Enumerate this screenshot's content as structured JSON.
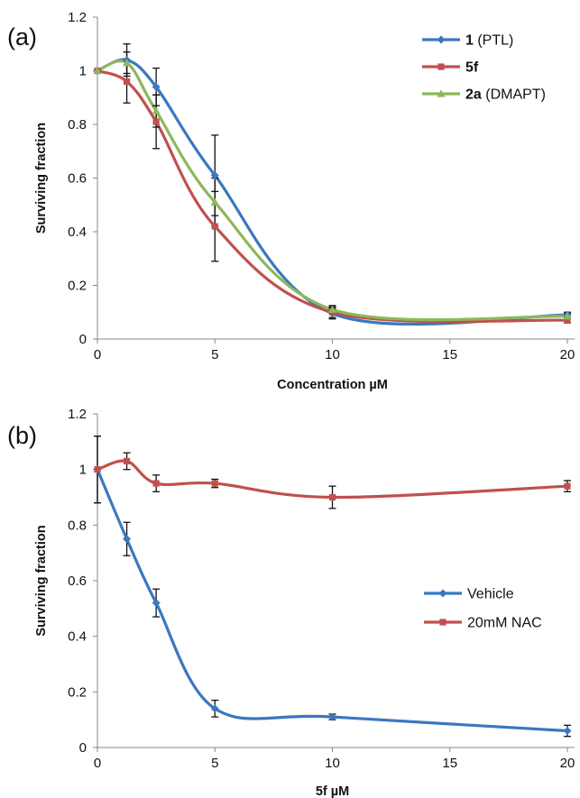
{
  "chart_data": [
    {
      "type": "line",
      "panel_label": "(a)",
      "xlabel": "Concentration µM",
      "ylabel": "Surviving fraction",
      "xlim": [
        0,
        20
      ],
      "ylim": [
        0,
        1.2
      ],
      "xticks": [
        "0",
        "5",
        "10",
        "15",
        "20"
      ],
      "yticks": [
        "0",
        "0.2",
        "0.4",
        "0.6",
        "0.8",
        "1",
        "1.2"
      ],
      "grid": false,
      "legend_position": "top-right",
      "series": [
        {
          "name": "1 (PTL)",
          "name_bold": "1",
          "name_rest": " (PTL)",
          "color": "#3a78c0",
          "marker": "diamond",
          "x": [
            0,
            1.25,
            2.5,
            5,
            10,
            20
          ],
          "values": [
            1.0,
            1.04,
            0.94,
            0.61,
            0.095,
            0.09
          ],
          "errors": [
            0,
            0.06,
            0.07,
            0.15,
            0.02,
            0.01
          ]
        },
        {
          "name": "5f",
          "name_bold": "5f",
          "name_rest": "",
          "color": "#c0504d",
          "marker": "square",
          "x": [
            0,
            1.25,
            2.5,
            5,
            10,
            20
          ],
          "values": [
            1.0,
            0.96,
            0.81,
            0.42,
            0.1,
            0.07
          ],
          "errors": [
            0,
            0.08,
            0.1,
            0.13,
            0.02,
            0.01
          ]
        },
        {
          "name": "2a (DMAPT)",
          "name_bold": "2a",
          "name_rest": " (DMAPT)",
          "color": "#8db85a",
          "marker": "triangle",
          "x": [
            0,
            1.25,
            2.5,
            5,
            10,
            20
          ],
          "values": [
            1.0,
            1.03,
            0.85,
            0.51,
            0.11,
            0.085
          ],
          "errors": [
            0,
            0.04,
            0.06,
            0.09,
            0.015,
            0.01
          ]
        }
      ]
    },
    {
      "type": "line",
      "panel_label": "(b)",
      "xlabel": "5f µM",
      "ylabel": "Surviving fraction",
      "xlim": [
        0,
        20
      ],
      "ylim": [
        0,
        1.2
      ],
      "xticks": [
        "0",
        "5",
        "10",
        "15",
        "20"
      ],
      "yticks": [
        "0",
        "0.2",
        "0.4",
        "0.6",
        "0.8",
        "1",
        "1.2"
      ],
      "grid": false,
      "legend_position": "right-middle",
      "series": [
        {
          "name": "Vehicle",
          "name_bold": "",
          "name_rest": "Vehicle",
          "color": "#3a78c0",
          "marker": "diamond",
          "x": [
            0,
            1.25,
            2.5,
            5,
            10,
            20
          ],
          "values": [
            1.0,
            0.75,
            0.52,
            0.14,
            0.11,
            0.06
          ],
          "errors": [
            0.12,
            0.06,
            0.05,
            0.03,
            0.01,
            0.02
          ]
        },
        {
          "name": "20mM NAC",
          "name_bold": "",
          "name_rest": "20mM NAC",
          "color": "#c0504d",
          "marker": "square",
          "x": [
            0,
            1.25,
            2.5,
            5,
            10,
            20
          ],
          "values": [
            1.0,
            1.03,
            0.95,
            0.95,
            0.9,
            0.94
          ],
          "errors": [
            0.12,
            0.03,
            0.03,
            0.015,
            0.04,
            0.02
          ]
        }
      ]
    }
  ]
}
